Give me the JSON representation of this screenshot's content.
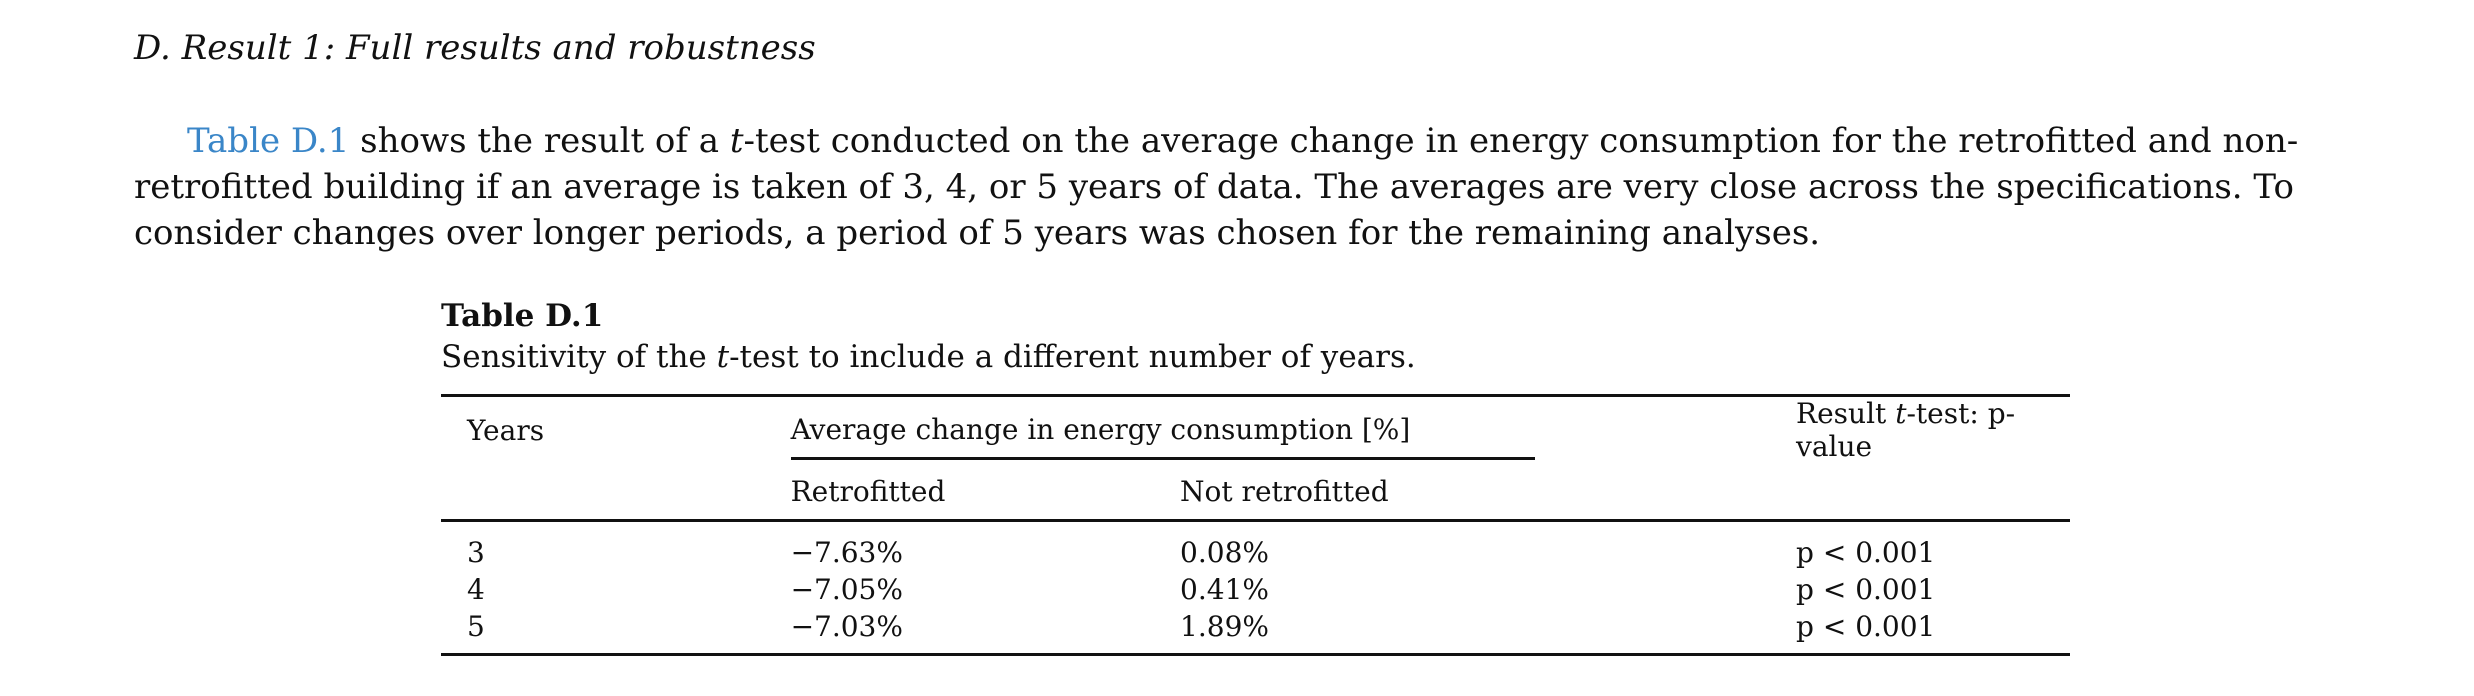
{
  "section": {
    "heading": "D. Result 1: Full results and robustness"
  },
  "paragraph": {
    "ref_link": "Table D.1",
    "text_before_t": " shows the result of a ",
    "t_italic": "t",
    "text_after_t": "-test conducted on the average change in energy consumption for the retrofitted and non-retrofitted building if an average is taken of 3, 4, or 5 years of data. The averages are very close across the specifications. To consider changes over longer periods, a period of 5 years was chosen for the remaining analyses."
  },
  "table": {
    "label": "Table D.1",
    "caption_before": "Sensitivity of the ",
    "caption_t": "t",
    "caption_after": "-test to include a different number of years.",
    "headers": {
      "years": "Years",
      "group": "Average change in energy consumption [%]",
      "retrofitted": "Retrofitted",
      "not_retrofitted": "Not retrofitted",
      "result_before": "Result ",
      "result_t": "t",
      "result_after": "-test: p-value"
    },
    "rows": [
      {
        "years": "3",
        "retrofitted": "−7.63%",
        "not_retrofitted": "0.08%",
        "p_value": "p < 0.001"
      },
      {
        "years": "4",
        "retrofitted": "−7.05%",
        "not_retrofitted": "0.41%",
        "p_value": "p < 0.001"
      },
      {
        "years": "5",
        "retrofitted": "−7.03%",
        "not_retrofitted": "1.89%",
        "p_value": "p < 0.001"
      }
    ]
  },
  "colors": {
    "link": "#3a86c8",
    "text": "#111111"
  }
}
